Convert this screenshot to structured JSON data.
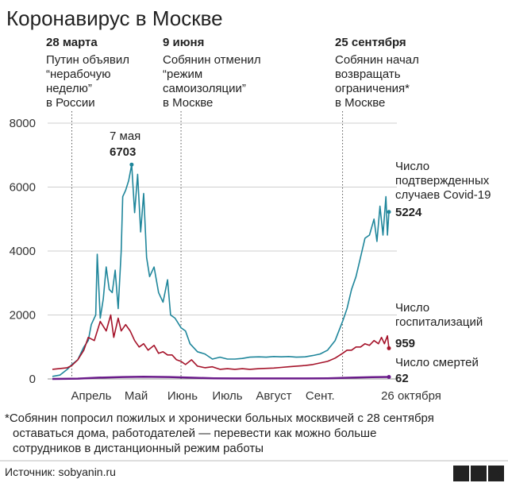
{
  "title": "Коронавирус в Москве",
  "colors": {
    "cases": "#1f869b",
    "hospital": "#a5132a",
    "deaths": "#6a1b8a",
    "grid": "#cfcfcf",
    "text": "#222222"
  },
  "annotations": [
    {
      "date": "28 марта",
      "lines": [
        "Путин объявил",
        "“нерабочую",
        "неделю”",
        "в России"
      ]
    },
    {
      "date": "9 июня",
      "lines": [
        "Собянин отменил",
        "“режим",
        "самоизоляции”",
        "в Москве"
      ]
    },
    {
      "date": "25 сентября",
      "lines": [
        "Собянин начал",
        "возвращать",
        "ограничения*",
        "в Москве"
      ]
    }
  ],
  "peak": {
    "label": "7 мая",
    "value": "6703"
  },
  "series_labels": {
    "cases": {
      "lines": [
        "Число",
        "подтвержденных",
        "случаев Covid-19"
      ],
      "value": "5224"
    },
    "hospital": {
      "lines": [
        "Число",
        "госпитализаций"
      ],
      "value": "959"
    },
    "deaths": {
      "lines": [
        "Число смертей"
      ],
      "value": "62"
    }
  },
  "footnote": [
    "*Собянин попросил пожилых и хронически больных москвичей с 28 сентября",
    "оставаться дома, работодателей — перевести как можно больше",
    "сотрудников в дистанционный режим работы"
  ],
  "source": "Источник: sobyanin.ru",
  "logo": "BBC",
  "chart_data": {
    "type": "line",
    "title": "Коронавирус в Москве",
    "ylim": [
      0,
      8000
    ],
    "yticks": [
      0,
      2000,
      4000,
      6000,
      8000
    ],
    "ytick_labels": [
      "0",
      "2000",
      "4000",
      "6000",
      "8000"
    ],
    "xtick_labels": [
      "Апрель",
      "Май",
      "Июнь",
      "Июль",
      "Август",
      "Сент.",
      "26 октября"
    ],
    "x_start": "2020-03-15",
    "series": [
      {
        "name": "Число подтвержденных случаев Covid-19",
        "points": [
          [
            "2020-03-15",
            80
          ],
          [
            "2020-03-20",
            120
          ],
          [
            "2020-03-25",
            300
          ],
          [
            "2020-03-28",
            450
          ],
          [
            "2020-04-01",
            600
          ],
          [
            "2020-04-05",
            1000
          ],
          [
            "2020-04-08",
            1200
          ],
          [
            "2020-04-10",
            1700
          ],
          [
            "2020-04-13",
            2000
          ],
          [
            "2020-04-14",
            3900
          ],
          [
            "2020-04-16",
            1900
          ],
          [
            "2020-04-18",
            2500
          ],
          [
            "2020-04-20",
            3500
          ],
          [
            "2020-04-22",
            2800
          ],
          [
            "2020-04-24",
            2700
          ],
          [
            "2020-04-26",
            3400
          ],
          [
            "2020-04-28",
            2200
          ],
          [
            "2020-04-30",
            4000
          ],
          [
            "2020-05-01",
            5700
          ],
          [
            "2020-05-03",
            5900
          ],
          [
            "2020-05-05",
            6200
          ],
          [
            "2020-05-07",
            6703
          ],
          [
            "2020-05-09",
            5200
          ],
          [
            "2020-05-11",
            6400
          ],
          [
            "2020-05-13",
            4600
          ],
          [
            "2020-05-15",
            5800
          ],
          [
            "2020-05-17",
            3800
          ],
          [
            "2020-05-19",
            3200
          ],
          [
            "2020-05-22",
            3500
          ],
          [
            "2020-05-25",
            2700
          ],
          [
            "2020-05-28",
            2400
          ],
          [
            "2020-05-31",
            3100
          ],
          [
            "2020-06-02",
            2000
          ],
          [
            "2020-06-05",
            1900
          ],
          [
            "2020-06-09",
            1600
          ],
          [
            "2020-06-12",
            1500
          ],
          [
            "2020-06-15",
            1100
          ],
          [
            "2020-06-20",
            850
          ],
          [
            "2020-06-25",
            780
          ],
          [
            "2020-06-30",
            620
          ],
          [
            "2020-07-05",
            680
          ],
          [
            "2020-07-10",
            620
          ],
          [
            "2020-07-15",
            620
          ],
          [
            "2020-07-20",
            640
          ],
          [
            "2020-07-25",
            680
          ],
          [
            "2020-07-31",
            690
          ],
          [
            "2020-08-05",
            680
          ],
          [
            "2020-08-10",
            700
          ],
          [
            "2020-08-15",
            690
          ],
          [
            "2020-08-20",
            700
          ],
          [
            "2020-08-25",
            680
          ],
          [
            "2020-08-31",
            690
          ],
          [
            "2020-09-05",
            730
          ],
          [
            "2020-09-10",
            780
          ],
          [
            "2020-09-15",
            900
          ],
          [
            "2020-09-20",
            1200
          ],
          [
            "2020-09-25",
            1800
          ],
          [
            "2020-09-28",
            2200
          ],
          [
            "2020-10-01",
            2800
          ],
          [
            "2020-10-04",
            3200
          ],
          [
            "2020-10-07",
            3800
          ],
          [
            "2020-10-10",
            4400
          ],
          [
            "2020-10-13",
            4500
          ],
          [
            "2020-10-16",
            5000
          ],
          [
            "2020-10-18",
            4300
          ],
          [
            "2020-10-20",
            5400
          ],
          [
            "2020-10-22",
            4500
          ],
          [
            "2020-10-24",
            5700
          ],
          [
            "2020-10-25",
            4500
          ],
          [
            "2020-10-26",
            5224
          ]
        ]
      },
      {
        "name": "Число госпитализаций",
        "points": [
          [
            "2020-03-15",
            300
          ],
          [
            "2020-03-25",
            350
          ],
          [
            "2020-03-28",
            420
          ],
          [
            "2020-04-01",
            600
          ],
          [
            "2020-04-05",
            900
          ],
          [
            "2020-04-08",
            1300
          ],
          [
            "2020-04-12",
            1200
          ],
          [
            "2020-04-16",
            1800
          ],
          [
            "2020-04-20",
            1500
          ],
          [
            "2020-04-23",
            2000
          ],
          [
            "2020-04-25",
            1300
          ],
          [
            "2020-04-28",
            1900
          ],
          [
            "2020-04-30",
            1500
          ],
          [
            "2020-05-03",
            1700
          ],
          [
            "2020-05-06",
            1500
          ],
          [
            "2020-05-09",
            1200
          ],
          [
            "2020-05-12",
            1000
          ],
          [
            "2020-05-15",
            1100
          ],
          [
            "2020-05-18",
            900
          ],
          [
            "2020-05-22",
            1050
          ],
          [
            "2020-05-25",
            800
          ],
          [
            "2020-05-28",
            850
          ],
          [
            "2020-05-31",
            750
          ],
          [
            "2020-06-03",
            750
          ],
          [
            "2020-06-06",
            600
          ],
          [
            "2020-06-09",
            550
          ],
          [
            "2020-06-12",
            450
          ],
          [
            "2020-06-16",
            600
          ],
          [
            "2020-06-20",
            400
          ],
          [
            "2020-06-25",
            350
          ],
          [
            "2020-06-30",
            380
          ],
          [
            "2020-07-05",
            300
          ],
          [
            "2020-07-10",
            320
          ],
          [
            "2020-07-15",
            300
          ],
          [
            "2020-07-20",
            320
          ],
          [
            "2020-07-25",
            300
          ],
          [
            "2020-07-31",
            320
          ],
          [
            "2020-08-05",
            330
          ],
          [
            "2020-08-10",
            340
          ],
          [
            "2020-08-15",
            360
          ],
          [
            "2020-08-20",
            380
          ],
          [
            "2020-08-25",
            400
          ],
          [
            "2020-08-31",
            420
          ],
          [
            "2020-09-05",
            450
          ],
          [
            "2020-09-10",
            500
          ],
          [
            "2020-09-15",
            550
          ],
          [
            "2020-09-20",
            650
          ],
          [
            "2020-09-25",
            800
          ],
          [
            "2020-09-28",
            900
          ],
          [
            "2020-10-01",
            900
          ],
          [
            "2020-10-04",
            1000
          ],
          [
            "2020-10-07",
            1000
          ],
          [
            "2020-10-10",
            1100
          ],
          [
            "2020-10-13",
            1050
          ],
          [
            "2020-10-16",
            1200
          ],
          [
            "2020-10-19",
            1100
          ],
          [
            "2020-10-21",
            1300
          ],
          [
            "2020-10-23",
            1100
          ],
          [
            "2020-10-25",
            1350
          ],
          [
            "2020-10-26",
            959
          ]
        ]
      },
      {
        "name": "Число смертей",
        "points": [
          [
            "2020-03-15",
            0
          ],
          [
            "2020-04-01",
            10
          ],
          [
            "2020-04-15",
            40
          ],
          [
            "2020-05-01",
            60
          ],
          [
            "2020-05-15",
            70
          ],
          [
            "2020-06-01",
            60
          ],
          [
            "2020-06-15",
            40
          ],
          [
            "2020-07-01",
            20
          ],
          [
            "2020-07-15",
            15
          ],
          [
            "2020-08-01",
            15
          ],
          [
            "2020-08-15",
            15
          ],
          [
            "2020-09-01",
            15
          ],
          [
            "2020-09-15",
            20
          ],
          [
            "2020-10-01",
            40
          ],
          [
            "2020-10-15",
            55
          ],
          [
            "2020-10-26",
            62
          ]
        ]
      }
    ]
  }
}
